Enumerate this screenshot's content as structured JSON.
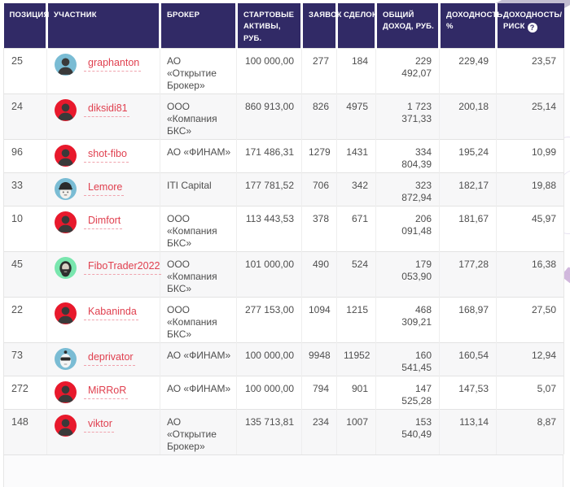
{
  "colors": {
    "header_bg": "#312a66",
    "header_text": "#ffffff",
    "link": "#e0404f",
    "link_underline": "#f0a3ad",
    "row_alt_bg": "#f7f7f8",
    "body_text": "#4e4e4e",
    "border": "#e3e3e3",
    "info_icon_bg": "#ffffff",
    "info_icon_text": "#312a66",
    "avatar_fg": "#3a3a3a",
    "avatar_bg": {
      "person-red": "#e8192c",
      "person-blue": "#7abcd4",
      "person-helmet-blue": "#7abcd4",
      "person-beard-green": "#79e6ae",
      "robot-blue": "#7abcd4"
    }
  },
  "table": {
    "info_icon_glyph": "?",
    "columns": [
      {
        "key": "position",
        "label": "ПОЗИЦИЯ",
        "align": "left"
      },
      {
        "key": "participant",
        "label": "УЧАСТНИК",
        "align": "left"
      },
      {
        "key": "broker",
        "label": "БРОКЕР",
        "align": "left"
      },
      {
        "key": "start_assets",
        "label": "СТАРТОВЫЕ АКТИВЫ, РУБ.",
        "align": "right"
      },
      {
        "key": "orders",
        "label": "ЗАЯВОК",
        "align": "right"
      },
      {
        "key": "trades",
        "label": "СДЕЛОК",
        "align": "right"
      },
      {
        "key": "total_income",
        "label": "ОБЩИЙ ДОХОД, РУБ.",
        "align": "right"
      },
      {
        "key": "yield_pct",
        "label": "ДОХОДНОСТЬ, %",
        "align": "right"
      },
      {
        "key": "yield_risk",
        "label": "ДОХОДНОСТЬ/ РИСК",
        "align": "right",
        "info_icon": true
      }
    ],
    "rows": [
      {
        "position": "25",
        "participant": "graphanton",
        "avatar": "person-blue",
        "broker": "АО «Открытие Брокер»",
        "start_assets": "100 000,00",
        "orders": "277",
        "trades": "184",
        "total_income": "229 492,07",
        "yield_pct": "229,49",
        "yield_risk": "23,57"
      },
      {
        "position": "24",
        "participant": "diksidi81",
        "avatar": "person-red",
        "broker": "ООО «Компания БКС»",
        "start_assets": "860 913,00",
        "orders": "826",
        "trades": "4975",
        "total_income": "1 723 371,33",
        "yield_pct": "200,18",
        "yield_risk": "25,14"
      },
      {
        "position": "96",
        "participant": "shot-fibo",
        "avatar": "person-red",
        "broker": "АО «ФИНАМ»",
        "start_assets": "171 486,31",
        "orders": "1279",
        "trades": "1431",
        "total_income": "334 804,39",
        "yield_pct": "195,24",
        "yield_risk": "10,99"
      },
      {
        "position": "33",
        "participant": "Lemore",
        "avatar": "person-helmet-blue",
        "broker": "ITI Capital",
        "start_assets": "177 781,52",
        "orders": "706",
        "trades": "342",
        "total_income": "323 872,94",
        "yield_pct": "182,17",
        "yield_risk": "19,88"
      },
      {
        "position": "10",
        "participant": "Dimfort",
        "avatar": "person-red",
        "broker": "ООО «Компания БКС»",
        "start_assets": "113 443,53",
        "orders": "378",
        "trades": "671",
        "total_income": "206 091,48",
        "yield_pct": "181,67",
        "yield_risk": "45,97"
      },
      {
        "position": "45",
        "participant": "FiboTrader2022",
        "avatar": "person-beard-green",
        "broker": "ООО «Компания БКС»",
        "start_assets": "101 000,00",
        "orders": "490",
        "trades": "524",
        "total_income": "179 053,90",
        "yield_pct": "177,28",
        "yield_risk": "16,38"
      },
      {
        "position": "22",
        "participant": "Kabaninda",
        "avatar": "person-red",
        "broker": "ООО «Компания БКС»",
        "start_assets": "277 153,00",
        "orders": "1094",
        "trades": "1215",
        "total_income": "468 309,21",
        "yield_pct": "168,97",
        "yield_risk": "27,50"
      },
      {
        "position": "73",
        "participant": "deprivator",
        "avatar": "robot-blue",
        "broker": "АО «ФИНАМ»",
        "start_assets": "100 000,00",
        "orders": "9948",
        "trades": "11952",
        "total_income": "160 541,45",
        "yield_pct": "160,54",
        "yield_risk": "12,94"
      },
      {
        "position": "272",
        "participant": "MiRRoR",
        "avatar": "person-red",
        "broker": "АО «ФИНАМ»",
        "start_assets": "100 000,00",
        "orders": "794",
        "trades": "901",
        "total_income": "147 525,28",
        "yield_pct": "147,53",
        "yield_risk": "5,07"
      },
      {
        "position": "148",
        "participant": "viktor",
        "avatar": "person-red",
        "broker": "АО «Открытие Брокер»",
        "start_assets": "135 713,81",
        "orders": "234",
        "trades": "1007",
        "total_income": "153 540,49",
        "yield_pct": "113,14",
        "yield_risk": "8,87"
      }
    ]
  }
}
